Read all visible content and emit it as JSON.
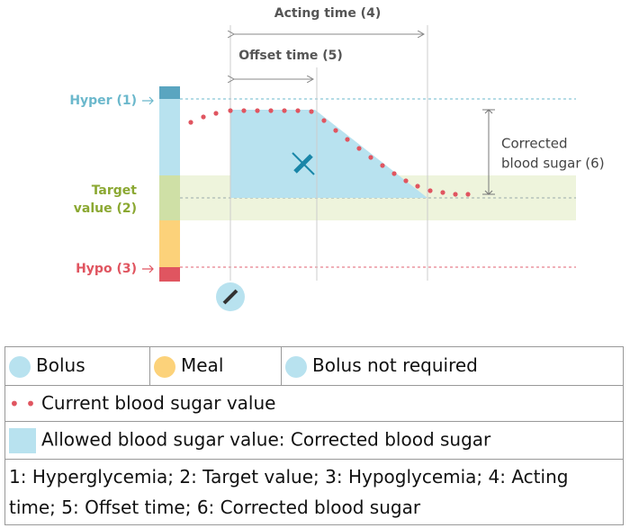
{
  "diagram": {
    "acting_time": "Acting time (4)",
    "offset_time": "Offset time (5)",
    "hyper": "Hyper (1)",
    "target": [
      "Target",
      "value (2)"
    ],
    "hypo": "Hypo (3)",
    "corrected": [
      "Corrected",
      "blood sugar (6)"
    ]
  },
  "legend": {
    "bolus": "Bolus",
    "meal": "Meal",
    "bolus_not_required": "Bolus not required",
    "current": "Current blood sugar value",
    "allowed": "Allowed blood sugar value: Corrected blood sugar",
    "key": [
      "1: Hyperglycemia; 2: Target value; 3: Hypoglycemia; 4: Acting",
      "time; 5: Offset time; 6: Corrected blood sugar"
    ]
  }
}
